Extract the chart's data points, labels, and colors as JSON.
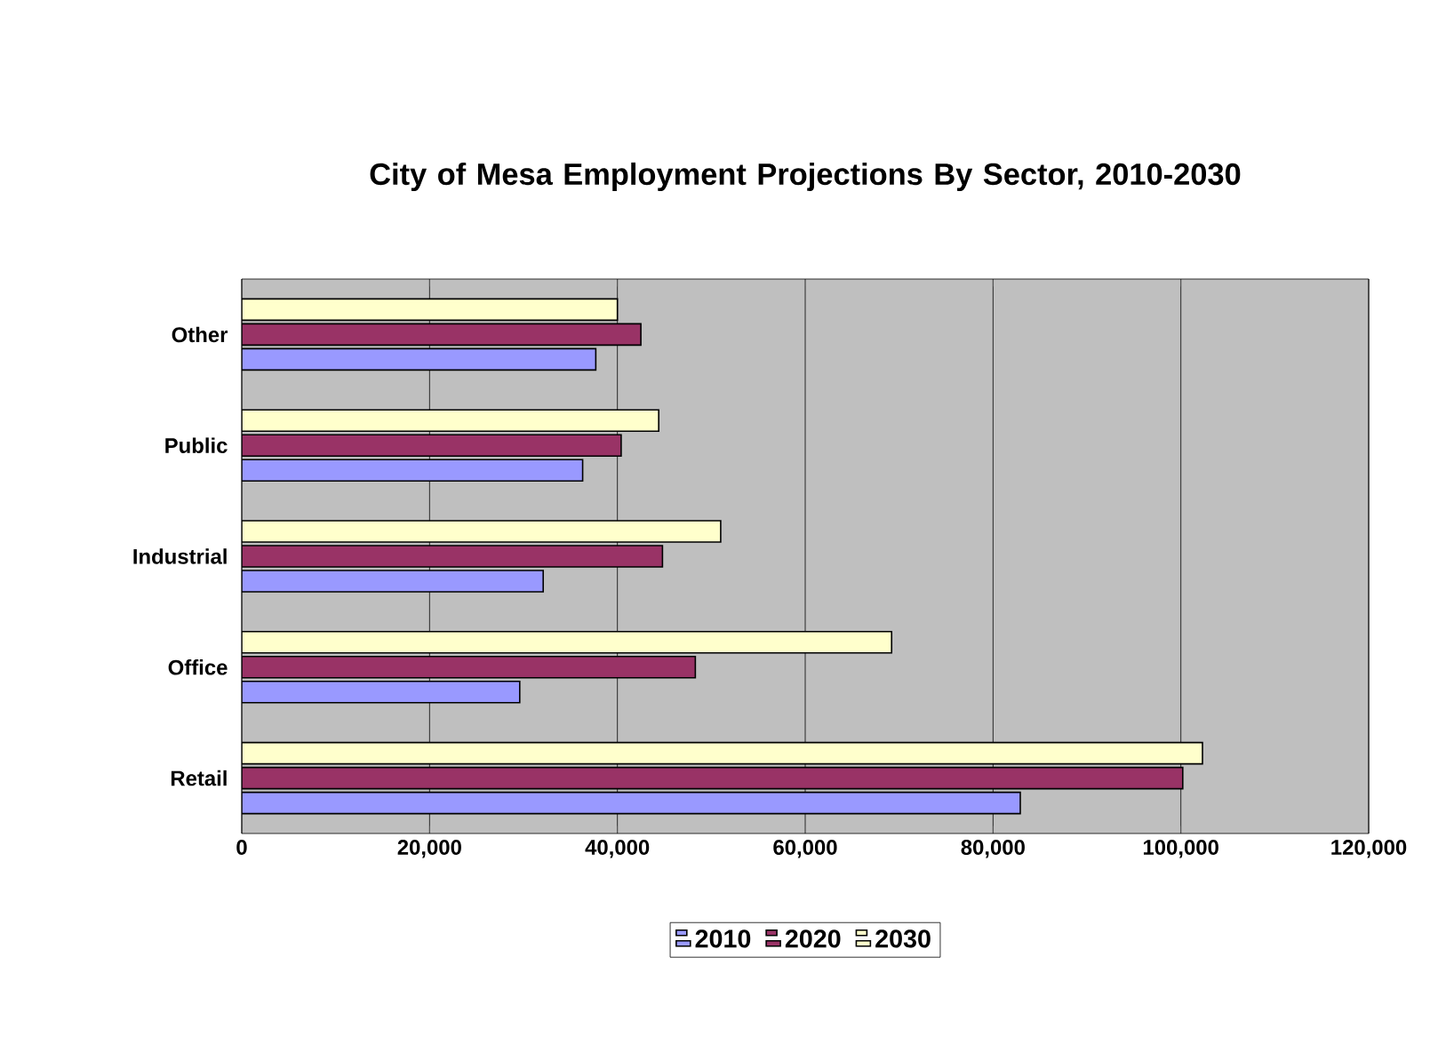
{
  "chart_data": {
    "type": "bar",
    "orientation": "horizontal",
    "title": "City of Mesa Employment Projections By Sector, 2010-2030",
    "categories": [
      "Other",
      "Public",
      "Industrial",
      "Office",
      "Retail"
    ],
    "series": [
      {
        "name": "2010",
        "color": "#9999ff",
        "values": [
          37700,
          36300,
          32100,
          29600,
          82900
        ]
      },
      {
        "name": "2020",
        "color": "#993366",
        "values": [
          42500,
          40400,
          44800,
          48300,
          100200
        ]
      },
      {
        "name": "2030",
        "color": "#ffffcc",
        "values": [
          40000,
          44400,
          51000,
          69200,
          102300
        ]
      }
    ],
    "xlim": [
      0,
      120000
    ],
    "xticks": [
      {
        "value": 0,
        "label": "0"
      },
      {
        "value": 20000,
        "label": "20,000"
      },
      {
        "value": 40000,
        "label": "40,000"
      },
      {
        "value": 60000,
        "label": "60,000"
      },
      {
        "value": 80000,
        "label": "80,000"
      },
      {
        "value": 100000,
        "label": "100,000"
      },
      {
        "value": 120000,
        "label": "120,000"
      }
    ],
    "grid": "x",
    "legend": "bottom"
  }
}
